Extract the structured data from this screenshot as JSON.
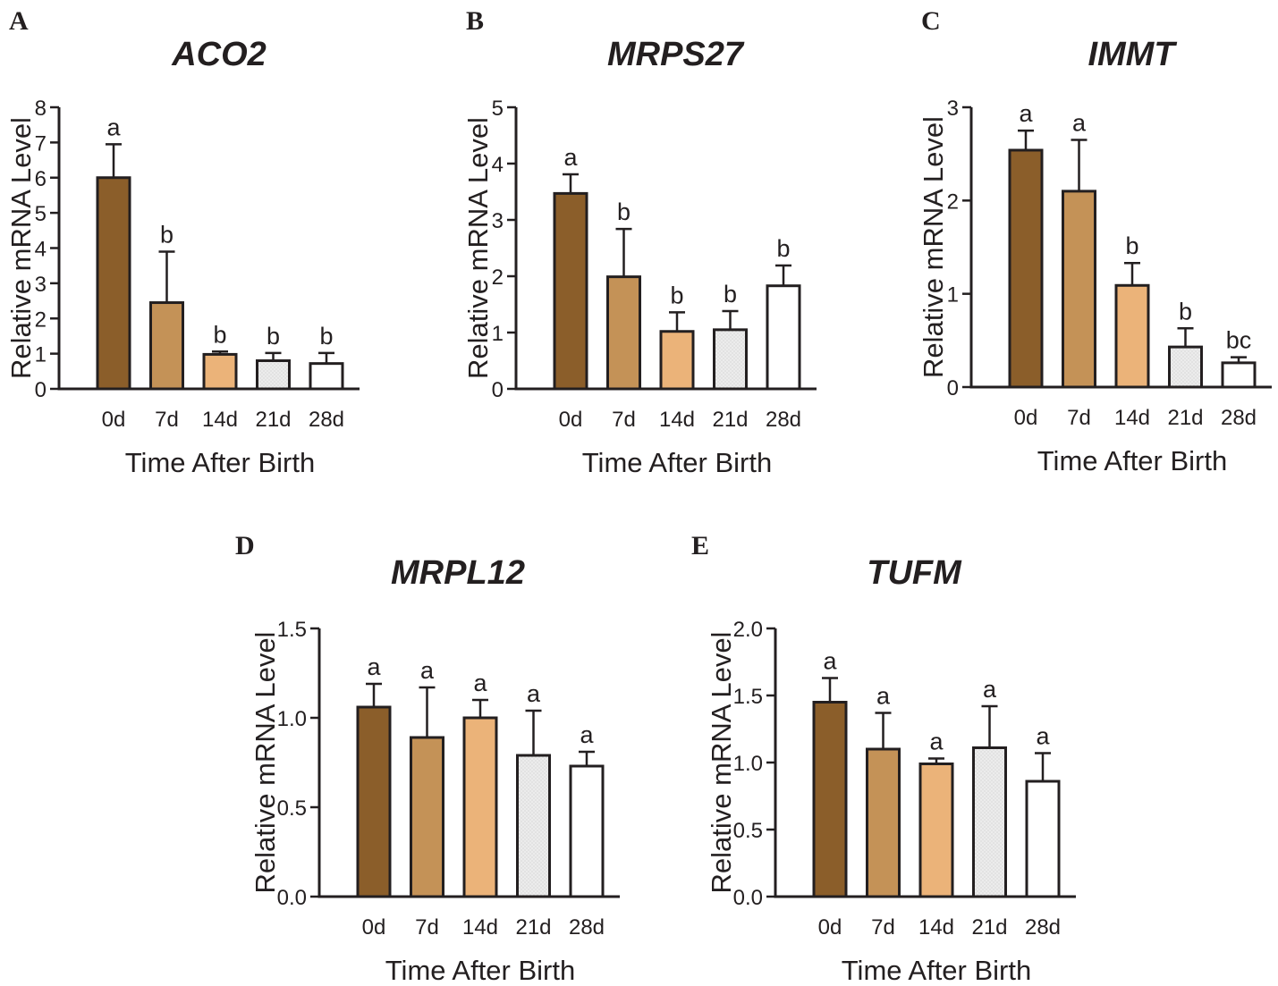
{
  "chart_data": [
    {
      "panel": "A",
      "type": "bar",
      "title": "ACO2",
      "xlabel": "Time After Birth",
      "ylabel": "Relative mRNA Level",
      "categories": [
        "0d",
        "7d",
        "14d",
        "21d",
        "28d"
      ],
      "values": [
        6.0,
        2.45,
        0.98,
        0.8,
        0.72
      ],
      "errors": [
        0.95,
        1.45,
        0.08,
        0.22,
        0.3
      ],
      "significance": [
        "a",
        "b",
        "b",
        "b",
        "b"
      ],
      "ylim": [
        0,
        8
      ],
      "yticks": [
        0,
        1,
        2,
        3,
        4,
        5,
        6,
        7,
        8
      ],
      "ytick_labels": [
        "0",
        "1",
        "2",
        "3",
        "4",
        "5",
        "6",
        "7",
        "8"
      ]
    },
    {
      "panel": "B",
      "type": "bar",
      "title": "MRPS27",
      "xlabel": "Time After Birth",
      "ylabel": "Relative mRNA Level",
      "categories": [
        "0d",
        "7d",
        "14d",
        "21d",
        "28d"
      ],
      "values": [
        3.47,
        1.99,
        1.02,
        1.05,
        1.83
      ],
      "errors": [
        0.34,
        0.85,
        0.34,
        0.33,
        0.36
      ],
      "significance": [
        "a",
        "b",
        "b",
        "b",
        "b"
      ],
      "ylim": [
        0,
        5
      ],
      "yticks": [
        0,
        1,
        2,
        3,
        4,
        5
      ],
      "ytick_labels": [
        "0",
        "1",
        "2",
        "3",
        "4",
        "5"
      ]
    },
    {
      "panel": "C",
      "type": "bar",
      "title": "IMMT",
      "xlabel": "Time After Birth",
      "ylabel": "Relative mRNA Level",
      "categories": [
        "0d",
        "7d",
        "14d",
        "21d",
        "28d"
      ],
      "values": [
        2.54,
        2.1,
        1.09,
        0.43,
        0.26
      ],
      "errors": [
        0.21,
        0.55,
        0.24,
        0.2,
        0.06
      ],
      "significance": [
        "a",
        "a",
        "b",
        "b",
        "bc"
      ],
      "ylim": [
        0,
        3
      ],
      "yticks": [
        0,
        1,
        2,
        3
      ],
      "ytick_labels": [
        "0",
        "1",
        "2",
        "3"
      ]
    },
    {
      "panel": "D",
      "type": "bar",
      "title": "MRPL12",
      "xlabel": "Time After Birth",
      "ylabel": "Relative mRNA Level",
      "categories": [
        "0d",
        "7d",
        "14d",
        "21d",
        "28d"
      ],
      "values": [
        1.06,
        0.89,
        1.0,
        0.79,
        0.73
      ],
      "errors": [
        0.13,
        0.28,
        0.1,
        0.25,
        0.08
      ],
      "significance": [
        "a",
        "a",
        "a",
        "a",
        "a"
      ],
      "ylim": [
        0,
        1.5
      ],
      "yticks": [
        0,
        0.5,
        1.0,
        1.5
      ],
      "ytick_labels": [
        "0.0",
        "0.5",
        "1.0",
        "1.5"
      ]
    },
    {
      "panel": "E",
      "type": "bar",
      "title": "TUFM",
      "xlabel": "Time After Birth",
      "ylabel": "Relative mRNA Level",
      "categories": [
        "0d",
        "7d",
        "14d",
        "21d",
        "28d"
      ],
      "values": [
        1.45,
        1.1,
        0.99,
        1.11,
        0.86
      ],
      "errors": [
        0.18,
        0.27,
        0.04,
        0.31,
        0.21
      ],
      "significance": [
        "a",
        "a",
        "a",
        "a",
        "a"
      ],
      "ylim": [
        0,
        2.0
      ],
      "yticks": [
        0,
        0.5,
        1.0,
        1.5,
        2.0
      ],
      "ytick_labels": [
        "0.0",
        "0.5",
        "1.0",
        "1.5",
        "2.0"
      ]
    }
  ],
  "colors": {
    "bars": [
      "#8b5e2a",
      "#c49257",
      "#ebb379",
      "#ececec",
      "#ffffff"
    ],
    "outline": "#231f20"
  }
}
